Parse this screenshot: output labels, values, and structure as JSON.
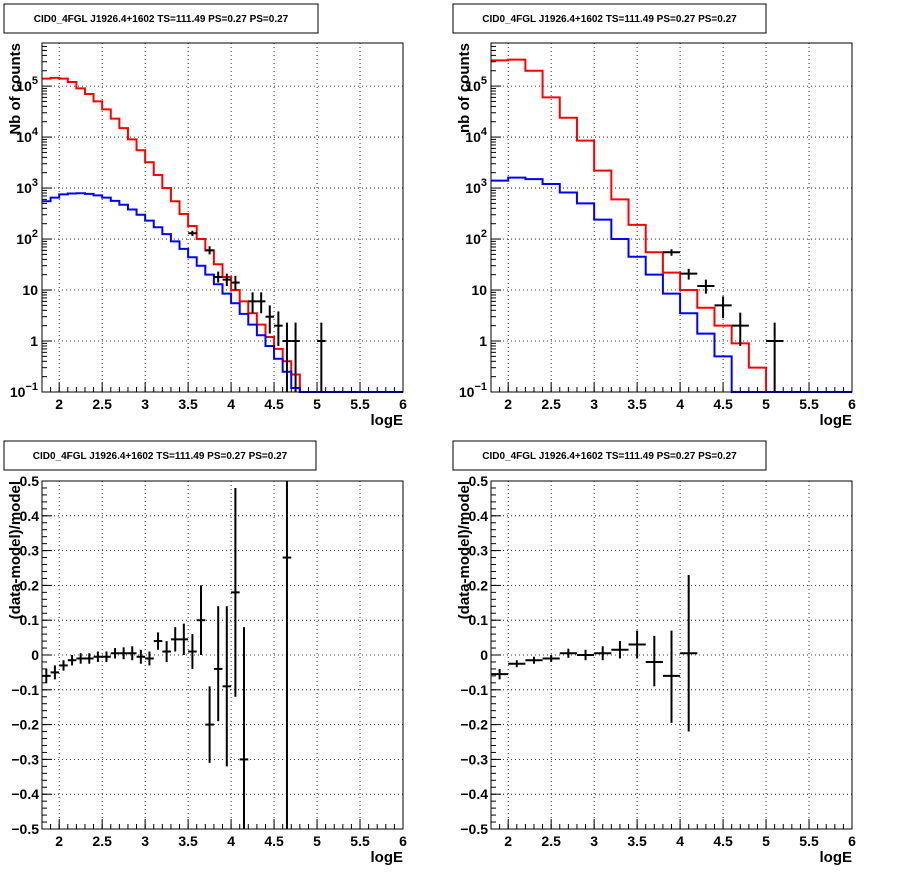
{
  "colors": {
    "model": "#ff0000",
    "component": "#0000ff",
    "data": "#000000",
    "grid": "#000000"
  },
  "chart_data": [
    {
      "type": "line",
      "title": "CID0_4FGL J1926.4+1602 TS=111.49 PS=0.27 PS=0.27",
      "xlabel": "logE",
      "ylabel": "Nb of counts",
      "xlim": [
        1.8,
        6.0
      ],
      "ylim": [
        0.1,
        700000
      ],
      "log_y": true,
      "grid": true,
      "x_ticks": [
        "2",
        "2.5",
        "3",
        "3.5",
        "4",
        "4.5",
        "5",
        "5.5",
        "6"
      ],
      "y_ticks": [
        "10^-1",
        "1",
        "10",
        "10^2",
        "10^3",
        "10^4",
        "10^5"
      ],
      "bin_edges": [
        1.8,
        1.9,
        2.0,
        2.1,
        2.2,
        2.3,
        2.4,
        2.5,
        2.6,
        2.7,
        2.8,
        2.9,
        3.0,
        3.1,
        3.2,
        3.3,
        3.4,
        3.5,
        3.6,
        3.7,
        3.8,
        3.9,
        4.0,
        4.1,
        4.2,
        4.3,
        4.4,
        4.5,
        4.6,
        4.7,
        4.8,
        4.9,
        5.0,
        5.1,
        5.2,
        5.3,
        5.4,
        5.5,
        5.6,
        5.7,
        5.8,
        5.9,
        6.0
      ],
      "series": [
        {
          "role": "model",
          "values": [
            140000,
            145000,
            140000,
            120000,
            90000,
            70000,
            50000,
            35000,
            23000,
            15000,
            9000,
            5500,
            3200,
            1800,
            1000,
            550,
            310,
            180,
            100,
            60,
            32,
            18,
            10,
            6,
            3.5,
            2.1,
            1.2,
            0.7,
            0.4,
            0.22,
            0.1,
            0.1,
            0.1,
            0.1,
            0.1,
            0.1,
            0.1,
            0.1,
            0.1,
            0.1,
            0.1,
            0.1
          ]
        },
        {
          "role": "component",
          "values": [
            550,
            650,
            750,
            780,
            790,
            770,
            720,
            650,
            560,
            470,
            380,
            300,
            230,
            170,
            125,
            90,
            64,
            44,
            30,
            20,
            13,
            8.5,
            5.5,
            3.4,
            2.1,
            1.3,
            0.8,
            0.45,
            0.25,
            0.12,
            0.1,
            0.1,
            0.1,
            0.1,
            0.1,
            0.1,
            0.1,
            0.1,
            0.1,
            0.1,
            0.1,
            0.1
          ]
        }
      ],
      "points": [
        {
          "x": 3.55,
          "y": 130,
          "xerr": 0.05,
          "ylo": 115,
          "yhi": 145
        },
        {
          "x": 3.75,
          "y": 60,
          "xerr": 0.05,
          "ylo": 50,
          "yhi": 72
        },
        {
          "x": 3.85,
          "y": 18,
          "xerr": 0.05,
          "ylo": 14,
          "yhi": 23
        },
        {
          "x": 3.95,
          "y": 16,
          "xerr": 0.05,
          "ylo": 12,
          "yhi": 21
        },
        {
          "x": 4.05,
          "y": 14,
          "xerr": 0.05,
          "ylo": 10,
          "yhi": 19
        },
        {
          "x": 4.25,
          "y": 6,
          "xerr": 0.05,
          "ylo": 3.5,
          "yhi": 9
        },
        {
          "x": 4.35,
          "y": 6,
          "xerr": 0.05,
          "ylo": 3.5,
          "yhi": 9
        },
        {
          "x": 4.45,
          "y": 3,
          "xerr": 0.05,
          "ylo": 1.4,
          "yhi": 5
        },
        {
          "x": 4.55,
          "y": 2,
          "xerr": 0.05,
          "ylo": 0.8,
          "yhi": 3.8
        },
        {
          "x": 4.65,
          "y": 1,
          "xerr": 0.05,
          "ylo": 0.1,
          "yhi": 2.3
        },
        {
          "x": 4.75,
          "y": 1,
          "xerr": 0.05,
          "ylo": 0.1,
          "yhi": 2.3
        },
        {
          "x": 5.05,
          "y": 1,
          "xerr": 0.05,
          "ylo": 0.1,
          "yhi": 2.3
        }
      ]
    },
    {
      "type": "line",
      "title": "CID0_4FGL J1926.4+1602 TS=111.49 PS=0.27 PS=0.27",
      "xlabel": "logE",
      "ylabel": "nb of counts",
      "xlim": [
        1.8,
        6.0
      ],
      "ylim": [
        0.1,
        700000
      ],
      "log_y": true,
      "grid": true,
      "x_ticks": [
        "2",
        "2.5",
        "3",
        "3.5",
        "4",
        "4.5",
        "5",
        "5.5",
        "6"
      ],
      "y_ticks": [
        "10^-1",
        "1",
        "10",
        "10^2",
        "10^3",
        "10^4",
        "10^5"
      ],
      "bin_edges": [
        1.8,
        2.0,
        2.2,
        2.4,
        2.6,
        2.8,
        3.0,
        3.2,
        3.4,
        3.6,
        3.8,
        4.0,
        4.2,
        4.4,
        4.6,
        4.8,
        5.0,
        5.2,
        5.4,
        5.6,
        5.8,
        6.0
      ],
      "series": [
        {
          "role": "model",
          "values": [
            320000,
            330000,
            200000,
            60000,
            24000,
            8500,
            2200,
            600,
            190,
            55,
            22,
            10,
            4.5,
            2.0,
            0.9,
            0.3,
            0.1,
            0.1,
            0.1,
            0.1,
            0.1
          ]
        },
        {
          "role": "component",
          "values": [
            1400,
            1600,
            1500,
            1200,
            820,
            500,
            240,
            100,
            45,
            20,
            8.5,
            3.5,
            1.4,
            0.5,
            0.1,
            0.1,
            0.1,
            0.1,
            0.1,
            0.1,
            0.1
          ]
        }
      ],
      "points": [
        {
          "x": 3.9,
          "y": 55,
          "xerr": 0.1,
          "ylo": 47,
          "yhi": 63
        },
        {
          "x": 4.1,
          "y": 21,
          "xerr": 0.1,
          "ylo": 16,
          "yhi": 26
        },
        {
          "x": 4.3,
          "y": 12,
          "xerr": 0.1,
          "ylo": 8.5,
          "yhi": 16
        },
        {
          "x": 4.5,
          "y": 5,
          "xerr": 0.1,
          "ylo": 2.8,
          "yhi": 7.5
        },
        {
          "x": 4.7,
          "y": 2,
          "xerr": 0.1,
          "ylo": 0.8,
          "yhi": 3.6
        },
        {
          "x": 5.1,
          "y": 1,
          "xerr": 0.1,
          "ylo": 0.1,
          "yhi": 2.3
        }
      ]
    },
    {
      "type": "scatter",
      "title": "CID0_4FGL J1926.4+1602 TS=111.49 PS=0.27 PS=0.27",
      "xlabel": "logE",
      "ylabel": "(data-model)/model",
      "xlim": [
        1.8,
        6.0
      ],
      "ylim": [
        -0.5,
        0.5
      ],
      "log_y": false,
      "grid": true,
      "x_ticks": [
        "2",
        "2.5",
        "3",
        "3.5",
        "4",
        "4.5",
        "5",
        "5.5",
        "6"
      ],
      "y_ticks": [
        "−0.5",
        "−0.4",
        "−0.3",
        "−0.2",
        "−0.1",
        "0",
        "0.1",
        "0.2",
        "0.3",
        "0.4",
        "0.5"
      ],
      "points": [
        {
          "x": 1.85,
          "y": -0.06,
          "xerr": 0.05,
          "ylo": -0.08,
          "yhi": -0.04
        },
        {
          "x": 1.95,
          "y": -0.05,
          "xerr": 0.05,
          "ylo": -0.07,
          "yhi": -0.03
        },
        {
          "x": 2.05,
          "y": -0.03,
          "xerr": 0.05,
          "ylo": -0.045,
          "yhi": -0.015
        },
        {
          "x": 2.15,
          "y": -0.015,
          "xerr": 0.05,
          "ylo": -0.03,
          "yhi": 0.0
        },
        {
          "x": 2.25,
          "y": -0.01,
          "xerr": 0.05,
          "ylo": -0.025,
          "yhi": 0.005
        },
        {
          "x": 2.35,
          "y": -0.01,
          "xerr": 0.05,
          "ylo": -0.025,
          "yhi": 0.005
        },
        {
          "x": 2.45,
          "y": -0.005,
          "xerr": 0.05,
          "ylo": -0.02,
          "yhi": 0.01
        },
        {
          "x": 2.55,
          "y": -0.005,
          "xerr": 0.05,
          "ylo": -0.02,
          "yhi": 0.01
        },
        {
          "x": 2.65,
          "y": 0.005,
          "xerr": 0.05,
          "ylo": -0.01,
          "yhi": 0.02
        },
        {
          "x": 2.75,
          "y": 0.005,
          "xerr": 0.05,
          "ylo": -0.012,
          "yhi": 0.022
        },
        {
          "x": 2.85,
          "y": 0.005,
          "xerr": 0.05,
          "ylo": -0.015,
          "yhi": 0.025
        },
        {
          "x": 2.95,
          "y": -0.005,
          "xerr": 0.05,
          "ylo": -0.025,
          "yhi": 0.015
        },
        {
          "x": 3.05,
          "y": -0.01,
          "xerr": 0.05,
          "ylo": -0.03,
          "yhi": 0.01
        },
        {
          "x": 3.15,
          "y": 0.04,
          "xerr": 0.05,
          "ylo": 0.015,
          "yhi": 0.065
        },
        {
          "x": 3.25,
          "y": 0.01,
          "xerr": 0.05,
          "ylo": -0.02,
          "yhi": 0.04
        },
        {
          "x": 3.35,
          "y": 0.045,
          "xerr": 0.05,
          "ylo": 0.01,
          "yhi": 0.08
        },
        {
          "x": 3.45,
          "y": 0.045,
          "xerr": 0.05,
          "ylo": 0.0,
          "yhi": 0.09
        },
        {
          "x": 3.55,
          "y": 0.01,
          "xerr": 0.05,
          "ylo": -0.04,
          "yhi": 0.06
        },
        {
          "x": 3.65,
          "y": 0.1,
          "xerr": 0.05,
          "ylo": -0.0,
          "yhi": 0.2
        },
        {
          "x": 3.75,
          "y": -0.2,
          "xerr": 0.05,
          "ylo": -0.31,
          "yhi": -0.09
        },
        {
          "x": 3.85,
          "y": -0.04,
          "xerr": 0.05,
          "ylo": -0.19,
          "yhi": 0.14
        },
        {
          "x": 3.95,
          "y": -0.09,
          "xerr": 0.05,
          "ylo": -0.32,
          "yhi": 0.14
        },
        {
          "x": 4.05,
          "y": 0.18,
          "xerr": 0.05,
          "ylo": -0.12,
          "yhi": 0.48
        },
        {
          "x": 4.15,
          "y": -0.3,
          "xerr": 0.05,
          "ylo": -0.6,
          "yhi": 0.08
        },
        {
          "x": 4.65,
          "y": 0.28,
          "xerr": 0.05,
          "ylo": -0.6,
          "yhi": 0.6
        }
      ]
    },
    {
      "type": "scatter",
      "title": "CID0_4FGL J1926.4+1602 TS=111.49 PS=0.27 PS=0.27",
      "xlabel": "logE",
      "ylabel": "(data-model)/model",
      "xlim": [
        1.8,
        6.0
      ],
      "ylim": [
        -0.5,
        0.5
      ],
      "log_y": false,
      "grid": true,
      "x_ticks": [
        "2",
        "2.5",
        "3",
        "3.5",
        "4",
        "4.5",
        "5",
        "5.5",
        "6"
      ],
      "y_ticks": [
        "−0.5",
        "−0.4",
        "−0.3",
        "−0.2",
        "−0.1",
        "0",
        "0.1",
        "0.2",
        "0.3",
        "0.4",
        "0.5"
      ],
      "points": [
        {
          "x": 1.9,
          "y": -0.055,
          "xerr": 0.1,
          "ylo": -0.07,
          "yhi": -0.04
        },
        {
          "x": 2.1,
          "y": -0.025,
          "xerr": 0.1,
          "ylo": -0.035,
          "yhi": -0.015
        },
        {
          "x": 2.3,
          "y": -0.015,
          "xerr": 0.1,
          "ylo": -0.025,
          "yhi": -0.005
        },
        {
          "x": 2.5,
          "y": -0.01,
          "xerr": 0.1,
          "ylo": -0.02,
          "yhi": 0.0
        },
        {
          "x": 2.7,
          "y": 0.005,
          "xerr": 0.1,
          "ylo": -0.008,
          "yhi": 0.018
        },
        {
          "x": 2.9,
          "y": 0.0,
          "xerr": 0.1,
          "ylo": -0.015,
          "yhi": 0.015
        },
        {
          "x": 3.1,
          "y": 0.005,
          "xerr": 0.1,
          "ylo": -0.015,
          "yhi": 0.025
        },
        {
          "x": 3.3,
          "y": 0.015,
          "xerr": 0.1,
          "ylo": -0.01,
          "yhi": 0.04
        },
        {
          "x": 3.5,
          "y": 0.03,
          "xerr": 0.1,
          "ylo": -0.01,
          "yhi": 0.07
        },
        {
          "x": 3.7,
          "y": -0.02,
          "xerr": 0.1,
          "ylo": -0.09,
          "yhi": 0.055
        },
        {
          "x": 3.9,
          "y": -0.06,
          "xerr": 0.1,
          "ylo": -0.195,
          "yhi": 0.07
        },
        {
          "x": 4.1,
          "y": 0.005,
          "xerr": 0.1,
          "ylo": -0.22,
          "yhi": 0.23
        }
      ]
    }
  ]
}
